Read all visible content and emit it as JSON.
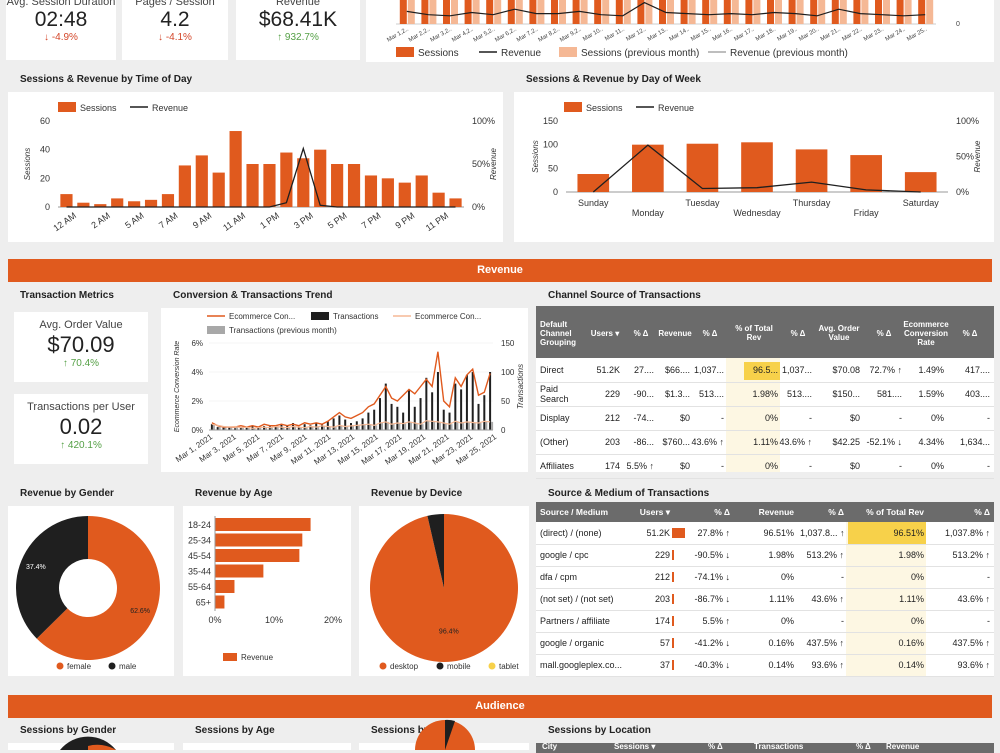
{
  "kpis": [
    {
      "label": "Avg. Session Duration",
      "value": "02:48",
      "delta": "↓ -4.9%",
      "dir": "neg"
    },
    {
      "label": "Pages / Session",
      "value": "4.2",
      "delta": "↓ -4.1%",
      "dir": "neg"
    },
    {
      "label": "Revenue",
      "value": "$68.41K",
      "delta": "↑ 932.7%",
      "dir": "pos"
    }
  ],
  "top_chart": {
    "x_labels": [
      "Mar 1,2..",
      "Mar 2,2..",
      "Mar 3,2..",
      "Mar 4,2..",
      "Mar 5,2..",
      "Mar 6,2..",
      "Mar 7,2..",
      "Mar 8,2..",
      "Mar 9,2..",
      "Mar 10..",
      "Mar 11..",
      "Mar 12..",
      "Mar 13..",
      "Mar 14..",
      "Mar 15..",
      "Mar 16..",
      "Mar 17..",
      "Mar 18..",
      "Mar 19..",
      "Mar 20..",
      "Mar 21..",
      "Mar 22..",
      "Mar 23..",
      "Mar 24..",
      "Mar 25.."
    ],
    "axis_right": "0",
    "legend": [
      "Sessions",
      "Revenue",
      "Sessions (previous month)",
      "Revenue (previous month)"
    ]
  },
  "time_of_day": {
    "title": "Sessions & Revenue by Time of Day",
    "legend": [
      "Sessions",
      "Revenue"
    ],
    "y_left_label": "Sessions",
    "y_right_label": "Revenue",
    "y_left_ticks": [
      "0",
      "20",
      "40",
      "60"
    ],
    "y_right_ticks": [
      "0%",
      "50%",
      "100%"
    ],
    "x_labels": [
      "12 AM",
      "2 AM",
      "5 AM",
      "7 AM",
      "9 AM",
      "11 AM",
      "1 PM",
      "3 PM",
      "5 PM",
      "7 PM",
      "9 PM",
      "11 PM"
    ],
    "sessions": [
      9,
      3,
      2,
      6,
      4,
      5,
      9,
      29,
      36,
      24,
      53,
      30,
      30,
      38,
      34,
      40,
      30,
      30,
      22,
      20,
      17,
      22,
      10,
      6
    ],
    "revenue_pct": [
      0,
      0,
      0,
      0,
      0,
      0,
      0,
      0,
      0,
      0,
      0,
      0,
      0,
      5,
      68,
      2,
      0,
      0,
      0,
      0,
      0,
      0,
      0,
      0
    ]
  },
  "day_of_week": {
    "title": "Sessions & Revenue by Day of Week",
    "legend": [
      "Sessions",
      "Revenue"
    ],
    "y_left_label": "Sessions",
    "y_right_label": "Revenue",
    "y_left_ticks": [
      "0",
      "50",
      "100",
      "150"
    ],
    "y_right_ticks": [
      "0%",
      "50%",
      "100%"
    ],
    "days": [
      "Sunday",
      "Monday",
      "Tuesday",
      "Wednesday",
      "Thursday",
      "Friday",
      "Saturday"
    ],
    "sessions": [
      38,
      100,
      102,
      105,
      90,
      78,
      42
    ],
    "revenue_pct": [
      0,
      66,
      5,
      6,
      14,
      3,
      0
    ]
  },
  "revenue_banner": "Revenue",
  "audience_banner": "Audience",
  "transaction_metrics": {
    "title": "Transaction Metrics",
    "aov_label": "Avg. Order Value",
    "aov_value": "$70.09",
    "aov_delta": "↑ 70.4%",
    "tpu_label": "Transactions per User",
    "tpu_value": "0.02",
    "tpu_delta": "↑ 420.1%"
  },
  "conv_trend": {
    "title": "Conversion & Transactions Trend",
    "legend": [
      "Ecommerce Con...",
      "Transactions",
      "Ecommerce Con...",
      "Transactions (previous month)"
    ],
    "y_left_label": "Ecommerce Conversion Rate",
    "y_right_label": "Transactions",
    "y_left_ticks": [
      "0%",
      "2%",
      "4%",
      "6%"
    ],
    "y_right_ticks": [
      "0",
      "50",
      "100",
      "150"
    ],
    "x_labels": [
      "Mar 1, 2021",
      "Mar 3, 2021",
      "Mar 5, 2021",
      "Mar 7, 2021",
      "Mar 9, 2021",
      "Mar 11, 2021",
      "Mar 13, 2021",
      "Mar 15, 2021",
      "Mar 17, 2021",
      "Mar 19, 2021",
      "Mar 21, 2021",
      "Mar 23, 2021",
      "Mar 25, 2021"
    ],
    "transactions": [
      10,
      5,
      4,
      6,
      3,
      5,
      6,
      8,
      5,
      7,
      6,
      8,
      10,
      7,
      12,
      6,
      10,
      8,
      12,
      10,
      15,
      20,
      25,
      18,
      12,
      15,
      20,
      30,
      35,
      55,
      80,
      45,
      40,
      30,
      70,
      40,
      55,
      90,
      65,
      100,
      35,
      30,
      80,
      70,
      95,
      100,
      45,
      60,
      100
    ],
    "conv_rate": [
      0.5,
      0.3,
      0.2,
      0.2,
      0.2,
      0.3,
      0.2,
      0.3,
      0.2,
      0.4,
      0.3,
      0.3,
      0.4,
      0.3,
      0.4,
      0.3,
      0.5,
      0.4,
      0.5,
      0.4,
      0.6,
      0.9,
      1.2,
      0.9,
      0.8,
      1.0,
      1.2,
      1.6,
      1.8,
      2.4,
      3.0,
      2.2,
      2.0,
      2.4,
      2.8,
      2.5,
      3.0,
      3.5,
      3.0,
      5.4,
      2.0,
      1.6,
      3.6,
      3.0,
      3.8,
      4.2,
      2.4,
      2.6,
      3.9
    ],
    "prev_transactions": [
      10,
      8,
      6,
      5,
      6,
      4,
      5,
      3,
      4,
      5,
      4,
      6,
      5,
      4,
      6,
      5,
      4,
      6,
      5,
      7,
      6,
      5,
      8,
      6,
      7,
      8,
      9,
      10,
      8,
      12,
      14,
      10,
      12,
      11,
      14,
      12,
      10,
      16,
      15,
      14,
      12,
      10,
      15,
      12,
      14,
      13,
      12,
      15,
      14
    ]
  },
  "channel_table": {
    "title": "Channel Source of Transactions",
    "headers": [
      "Default Channel Grouping",
      "Users ▾",
      "% Δ",
      "Revenue",
      "% Δ",
      "% of Total Rev",
      "% Δ",
      "Avg. Order Value",
      "% Δ",
      "Ecommerce Conversion Rate",
      "% Δ"
    ],
    "rows": [
      [
        "Direct",
        "51.2K",
        "27....",
        "$66....",
        "1,037...",
        "96.5...",
        "1,037...",
        "$70.08",
        "72.7% ↑",
        "1.49%",
        "417...."
      ],
      [
        "Paid Search",
        "229",
        "-90...",
        "$1.3...",
        "513....",
        "1.98%",
        "513....",
        "$150...",
        "581....",
        "1.59%",
        "403...."
      ],
      [
        "Display",
        "212",
        "-74...",
        "$0",
        "-",
        "0%",
        "-",
        "$0",
        "-",
        "0%",
        "-"
      ],
      [
        "(Other)",
        "203",
        "-86...",
        "$760...",
        "43.6% ↑",
        "1.11%",
        "43.6% ↑",
        "$42.25",
        "-52.1% ↓",
        "4.34%",
        "1,634..."
      ],
      [
        "Affiliates",
        "174",
        "5.5% ↑",
        "$0",
        "-",
        "0%",
        "-",
        "$0",
        "-",
        "0%",
        "-"
      ]
    ]
  },
  "gender": {
    "title": "Revenue by Gender",
    "slices": [
      {
        "name": "female",
        "value": 62.6,
        "label": "62.6%"
      },
      {
        "name": "male",
        "value": 37.4,
        "label": "37.4%"
      }
    ]
  },
  "age": {
    "title": "Revenue by Age",
    "categories": [
      "18-24",
      "25-34",
      "45-54",
      "35-44",
      "55-64",
      "65+"
    ],
    "values": [
      16.2,
      14.8,
      14.3,
      8.2,
      3.3,
      1.6
    ],
    "x_ticks": [
      "0%",
      "10%",
      "20%"
    ],
    "legend": "Revenue"
  },
  "device": {
    "title": "Revenue by Device",
    "slices": [
      {
        "name": "desktop",
        "value": 96.4,
        "label": "96.4%"
      },
      {
        "name": "mobile",
        "value": 3.6,
        "label": ""
      },
      {
        "name": "tablet",
        "value": 0,
        "label": ""
      }
    ]
  },
  "source_table": {
    "title": "Source & Medium of Transactions",
    "headers": [
      "Source / Medium",
      "Users ▾",
      "% Δ",
      "Revenue",
      "% Δ",
      "% of Total Rev",
      "% Δ"
    ],
    "rows": [
      {
        "src": "(direct) / (none)",
        "users": "51.2K",
        "users_frac": 1.0,
        "d1": "27.8% ↑",
        "rev": "96.51%",
        "d2": "1,037.8... ↑",
        "tot": "96.51%",
        "d3": "1,037.8% ↑"
      },
      {
        "src": "google / cpc",
        "users": "229",
        "users_frac": 0.0045,
        "d1": "-90.5% ↓",
        "rev": "1.98%",
        "d2": "513.2% ↑",
        "tot": "1.98%",
        "d3": "513.2% ↑"
      },
      {
        "src": "dfa / cpm",
        "users": "212",
        "users_frac": 0.0041,
        "d1": "-74.1% ↓",
        "rev": "0%",
        "d2": "-",
        "tot": "0%",
        "d3": "-"
      },
      {
        "src": "(not set) / (not set)",
        "users": "203",
        "users_frac": 0.004,
        "d1": "-86.7% ↓",
        "rev": "1.11%",
        "d2": "43.6% ↑",
        "tot": "1.11%",
        "d3": "43.6% ↑"
      },
      {
        "src": "Partners / affiliate",
        "users": "174",
        "users_frac": 0.0034,
        "d1": "5.5% ↑",
        "rev": "0%",
        "d2": "-",
        "tot": "0%",
        "d3": "-"
      },
      {
        "src": "google / organic",
        "users": "57",
        "users_frac": 0.0011,
        "d1": "-41.2% ↓",
        "rev": "0.16%",
        "d2": "437.5% ↑",
        "tot": "0.16%",
        "d3": "437.5% ↑"
      },
      {
        "src": "mall.googleplex.co...",
        "users": "37",
        "users_frac": 0.0007,
        "d1": "-40.3% ↓",
        "rev": "0.14%",
        "d2": "93.6% ↑",
        "tot": "0.14%",
        "d3": "93.6% ↑"
      }
    ]
  },
  "audience": {
    "sessions_gender": "Sessions by Gender",
    "sessions_age": "Sessions by Age",
    "sessions_device": "Sessions by Device",
    "sessions_location": "Sessions by Location",
    "location_headers": [
      "City",
      "Sessions ▾",
      "% Δ",
      "Transactions",
      "% Δ",
      "Revenue"
    ]
  },
  "colors": {
    "orange": "#e05a1e",
    "black": "#1f1f1f",
    "peach": "#f5b895",
    "gray": "#a8a8a8",
    "yellow": "#f7d14a",
    "green": "#55a046",
    "red": "#d4472a"
  }
}
